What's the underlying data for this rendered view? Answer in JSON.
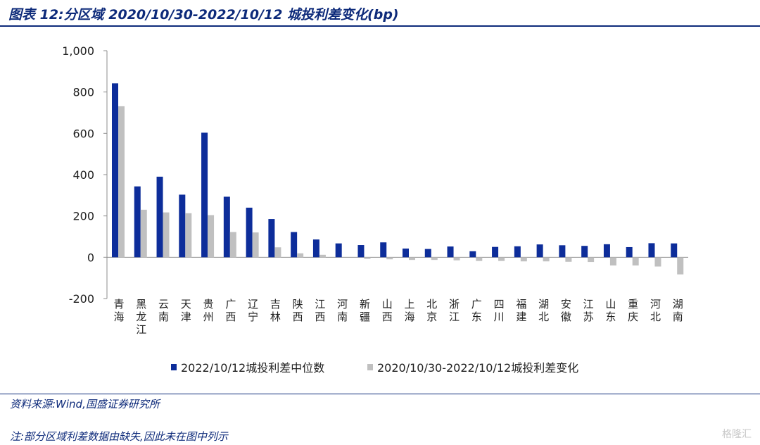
{
  "header": {
    "title": "图表 12:分区域 2020/10/30-2022/10/12 城投利差变化(bp)"
  },
  "footer": {
    "source": "资料来源:Wind,国盛证券研究所",
    "note": "注:部分区域利差数据由缺失,因此未在图中列示",
    "watermark": "格隆汇"
  },
  "colors": {
    "series1": "#0d2d9a",
    "series2": "#c0c0c0",
    "accent": "#0d2a7a"
  },
  "chart_data": {
    "type": "bar",
    "categories": [
      "青海",
      "黑龙江",
      "云南",
      "天津",
      "贵州",
      "广西",
      "辽宁",
      "吉林",
      "陕西",
      "江西",
      "河南",
      "新疆",
      "山西",
      "上海",
      "北京",
      "浙江",
      "广东",
      "四川",
      "福建",
      "湖北",
      "安徽",
      "江苏",
      "山东",
      "重庆",
      "河北",
      "湖南"
    ],
    "series": [
      {
        "name": "2022/10/12城投利差中位数",
        "values": [
          842,
          343,
          390,
          303,
          603,
          293,
          240,
          185,
          122,
          86,
          67,
          59,
          72,
          42,
          40,
          52,
          29,
          50,
          53,
          62,
          58,
          55,
          63,
          49,
          68,
          67
        ]
      },
      {
        "name": "2020/10/30-2022/10/12城投利差变化",
        "values": [
          731,
          230,
          217,
          213,
          204,
          122,
          120,
          48,
          19,
          12,
          0,
          -8,
          -10,
          -13,
          -13,
          -15,
          -18,
          -18,
          -20,
          -20,
          -22,
          -23,
          -40,
          -40,
          -45,
          -83
        ]
      }
    ],
    "ylim": [
      -200,
      1000
    ],
    "yticks": [
      "-200",
      "0",
      "200",
      "400",
      "600",
      "800",
      "1,000"
    ],
    "yticks_values": [
      -200,
      0,
      200,
      400,
      600,
      800,
      1000
    ],
    "legend_position": "bottom"
  }
}
